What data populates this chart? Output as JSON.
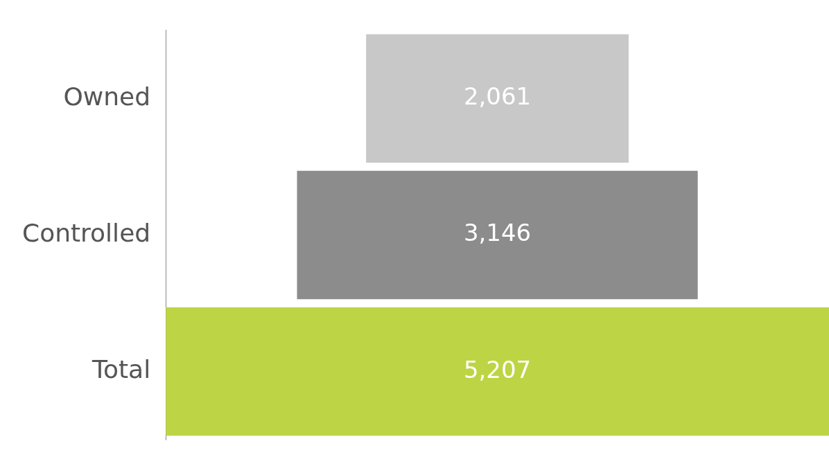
{
  "chart_data": {
    "type": "other",
    "categories": [
      "Owned",
      "Controlled",
      "Total"
    ],
    "values": [
      2061,
      3146,
      5207
    ],
    "value_labels": [
      "2,061",
      "3,146",
      "5,207"
    ],
    "colors": [
      "#c8c8c8",
      "#8c8c8c",
      "#bdd544"
    ],
    "legend": false
  }
}
